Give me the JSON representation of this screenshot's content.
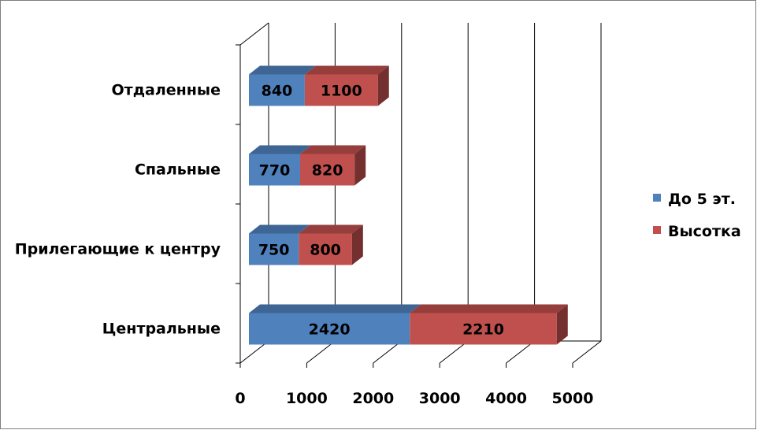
{
  "chart_data": {
    "type": "bar",
    "orientation": "horizontal",
    "stacked": true,
    "three_d": true,
    "categories": [
      "Центральные",
      "Прилегающие к центру",
      "Спальные",
      "Отдаленные"
    ],
    "series": [
      {
        "name": "До 5 эт.",
        "values": [
          2420,
          750,
          770,
          840
        ],
        "color": "#4F81BD"
      },
      {
        "name": "Высотка",
        "values": [
          2210,
          800,
          820,
          1100
        ],
        "color": "#C0504D"
      }
    ],
    "xlim": [
      0,
      5000
    ],
    "xticks": [
      0,
      1000,
      2000,
      3000,
      4000,
      5000
    ],
    "xtick_labels": [
      "0",
      "1000",
      "2000",
      "3000",
      "4000",
      "5000"
    ],
    "grid": true,
    "legend_position": "right"
  }
}
